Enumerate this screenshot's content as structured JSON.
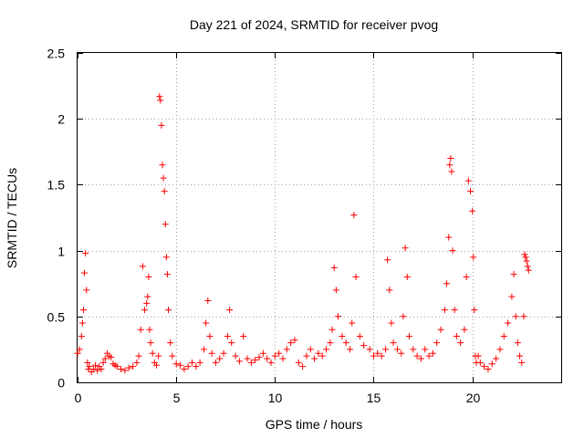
{
  "chart_data": {
    "type": "scatter",
    "title": "Day 221 of 2024, SRMTID for receiver pvog",
    "xlabel": "GPS time / hours",
    "ylabel": "SRMTID / TECUs",
    "xlim": [
      0,
      24.5
    ],
    "ylim": [
      0,
      2.5
    ],
    "xticks": [
      0,
      5,
      10,
      15,
      20
    ],
    "yticks": [
      0,
      0.5,
      1,
      1.5,
      2,
      2.5
    ],
    "xtick_labels": [
      "0",
      "5",
      "10",
      "15",
      "20"
    ],
    "ytick_labels": [
      "0",
      "0.5",
      "1",
      "1.5",
      "2",
      "2.5"
    ],
    "grid": true,
    "marker": "+",
    "color": "#ff0000",
    "series": [
      {
        "name": "SRMTID",
        "x": [
          0.0,
          0.1,
          0.2,
          0.25,
          0.3,
          0.35,
          0.4,
          0.45,
          0.5,
          0.55,
          0.6,
          0.7,
          0.8,
          0.9,
          1.0,
          1.1,
          1.2,
          1.3,
          1.4,
          1.5,
          1.6,
          1.7,
          1.8,
          1.9,
          2.0,
          2.2,
          2.4,
          2.6,
          2.8,
          3.0,
          3.1,
          3.2,
          3.3,
          3.4,
          3.5,
          3.55,
          3.6,
          3.65,
          3.7,
          3.8,
          3.9,
          4.0,
          4.1,
          4.15,
          4.2,
          4.25,
          4.3,
          4.35,
          4.4,
          4.45,
          4.5,
          4.55,
          4.6,
          4.7,
          4.8,
          5.0,
          5.2,
          5.4,
          5.6,
          5.8,
          6.0,
          6.2,
          6.4,
          6.5,
          6.6,
          6.7,
          6.8,
          7.0,
          7.2,
          7.4,
          7.6,
          7.7,
          7.8,
          8.0,
          8.2,
          8.4,
          8.6,
          8.8,
          9.0,
          9.2,
          9.4,
          9.6,
          9.8,
          10.0,
          10.2,
          10.4,
          10.6,
          10.8,
          11.0,
          11.2,
          11.4,
          11.6,
          11.8,
          12.0,
          12.2,
          12.4,
          12.6,
          12.8,
          12.9,
          13.0,
          13.1,
          13.2,
          13.4,
          13.6,
          13.8,
          13.9,
          14.0,
          14.1,
          14.3,
          14.5,
          14.8,
          15.0,
          15.2,
          15.4,
          15.6,
          15.7,
          15.8,
          15.9,
          16.0,
          16.2,
          16.4,
          16.5,
          16.6,
          16.7,
          16.8,
          17.0,
          17.2,
          17.4,
          17.6,
          17.8,
          18.0,
          18.2,
          18.4,
          18.6,
          18.7,
          18.8,
          18.85,
          18.9,
          18.95,
          19.0,
          19.1,
          19.2,
          19.4,
          19.6,
          19.7,
          19.8,
          19.9,
          20.0,
          20.05,
          20.1,
          20.15,
          20.2,
          20.3,
          20.4,
          20.6,
          20.8,
          21.0,
          21.2,
          21.4,
          21.6,
          21.8,
          22.0,
          22.1,
          22.2,
          22.3,
          22.4,
          22.5,
          22.6,
          22.65,
          22.7,
          22.75,
          22.8,
          22.85
        ],
        "values": [
          0.22,
          0.25,
          0.35,
          0.45,
          0.55,
          0.83,
          0.98,
          0.7,
          0.15,
          0.1,
          0.12,
          0.08,
          0.1,
          0.13,
          0.09,
          0.12,
          0.1,
          0.15,
          0.18,
          0.22,
          0.2,
          0.19,
          0.14,
          0.13,
          0.12,
          0.1,
          0.09,
          0.11,
          0.12,
          0.15,
          0.2,
          0.4,
          0.88,
          0.55,
          0.6,
          0.65,
          0.8,
          0.4,
          0.3,
          0.22,
          0.15,
          0.13,
          0.2,
          2.17,
          2.14,
          1.95,
          1.65,
          1.55,
          1.45,
          1.2,
          0.95,
          0.82,
          0.55,
          0.3,
          0.2,
          0.14,
          0.13,
          0.1,
          0.12,
          0.15,
          0.12,
          0.15,
          0.25,
          0.45,
          0.62,
          0.35,
          0.22,
          0.15,
          0.18,
          0.22,
          0.35,
          0.55,
          0.3,
          0.2,
          0.16,
          0.35,
          0.18,
          0.15,
          0.17,
          0.19,
          0.22,
          0.18,
          0.15,
          0.2,
          0.22,
          0.18,
          0.25,
          0.3,
          0.32,
          0.15,
          0.12,
          0.2,
          0.25,
          0.18,
          0.22,
          0.2,
          0.25,
          0.3,
          0.4,
          0.87,
          0.7,
          0.5,
          0.35,
          0.3,
          0.25,
          0.45,
          1.27,
          0.8,
          0.35,
          0.28,
          0.25,
          0.2,
          0.22,
          0.2,
          0.25,
          0.93,
          0.7,
          0.45,
          0.3,
          0.25,
          0.22,
          0.5,
          1.02,
          0.8,
          0.35,
          0.25,
          0.2,
          0.18,
          0.25,
          0.2,
          0.22,
          0.3,
          0.4,
          0.55,
          0.75,
          1.1,
          1.65,
          1.7,
          1.6,
          1.0,
          0.55,
          0.35,
          0.3,
          0.4,
          0.8,
          1.53,
          1.45,
          1.3,
          0.95,
          0.55,
          0.2,
          0.15,
          0.2,
          0.15,
          0.12,
          0.1,
          0.14,
          0.18,
          0.25,
          0.35,
          0.45,
          0.65,
          0.82,
          0.5,
          0.3,
          0.2,
          0.15,
          0.5,
          0.97,
          0.95,
          0.92,
          0.88,
          0.85
        ]
      }
    ]
  }
}
